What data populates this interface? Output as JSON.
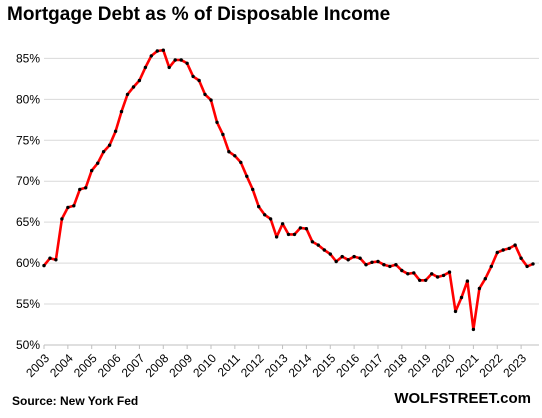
{
  "title": "Mortgage Debt as % of Disposable Income",
  "source": "Source: New York Fed",
  "brand": "WOLFSTREET.com",
  "chart_data": {
    "type": "line",
    "title": "Mortgage Debt as % of Disposable Income",
    "xlabel": "",
    "ylabel": "",
    "ylim": [
      50,
      87
    ],
    "xlim": [
      2003,
      2023.75
    ],
    "yticks": [
      50,
      55,
      60,
      65,
      70,
      75,
      80,
      85
    ],
    "ytick_labels": [
      "50%",
      "55%",
      "60%",
      "65%",
      "70%",
      "75%",
      "80%",
      "85%"
    ],
    "xticks": [
      2003,
      2004,
      2005,
      2006,
      2007,
      2008,
      2009,
      2010,
      2011,
      2012,
      2013,
      2014,
      2015,
      2016,
      2017,
      2018,
      2019,
      2020,
      2021,
      2022,
      2023
    ],
    "xtick_labels": [
      "2003",
      "2004",
      "2005",
      "2006",
      "2007",
      "2008",
      "2009",
      "2010",
      "2011",
      "2012",
      "2013",
      "2014",
      "2015",
      "2016",
      "2017",
      "2018",
      "2019",
      "2020",
      "2021",
      "2022",
      "2023"
    ],
    "grid": "horizontal",
    "line_color": "#ff0000",
    "marker_color": "#000000",
    "series": [
      {
        "x": [
          2003.0,
          2003.25,
          2003.5,
          2003.75,
          2004.0,
          2004.25,
          2004.5,
          2004.75,
          2005.0,
          2005.25,
          2005.5,
          2005.75,
          2006.0,
          2006.25,
          2006.5,
          2006.75,
          2007.0,
          2007.25,
          2007.5,
          2007.75,
          2008.0,
          2008.25,
          2008.5,
          2008.75,
          2009.0,
          2009.25,
          2009.5,
          2009.75,
          2010.0,
          2010.25,
          2010.5,
          2010.75,
          2011.0,
          2011.25,
          2011.5,
          2011.75,
          2012.0,
          2012.25,
          2012.5,
          2012.75,
          2013.0,
          2013.25,
          2013.5,
          2013.75,
          2014.0,
          2014.25,
          2014.5,
          2014.75,
          2015.0,
          2015.25,
          2015.5,
          2015.75,
          2016.0,
          2016.25,
          2016.5,
          2016.75,
          2017.0,
          2017.25,
          2017.5,
          2017.75,
          2018.0,
          2018.25,
          2018.5,
          2018.75,
          2019.0,
          2019.25,
          2019.5,
          2019.75,
          2020.0,
          2020.25,
          2020.5,
          2020.75,
          2021.0,
          2021.25,
          2021.5,
          2021.75,
          2022.0,
          2022.25,
          2022.5,
          2022.75,
          2023.0,
          2023.25,
          2023.5
        ],
        "values": [
          59.7,
          60.6,
          60.4,
          65.4,
          66.8,
          67.0,
          69.0,
          69.2,
          71.3,
          72.2,
          73.6,
          74.4,
          76.1,
          78.5,
          80.6,
          81.5,
          82.3,
          83.9,
          85.3,
          85.9,
          86.0,
          83.9,
          84.8,
          84.8,
          84.4,
          82.8,
          82.3,
          80.6,
          79.9,
          77.2,
          75.7,
          73.6,
          73.1,
          72.3,
          70.6,
          69.0,
          66.9,
          65.9,
          65.4,
          63.2,
          64.8,
          63.5,
          63.5,
          64.3,
          64.2,
          62.6,
          62.2,
          61.6,
          61.1,
          60.2,
          60.8,
          60.4,
          60.8,
          60.6,
          59.8,
          60.1,
          60.2,
          59.8,
          59.6,
          59.8,
          59.1,
          58.7,
          58.8,
          57.9,
          57.9,
          58.7,
          58.3,
          58.5,
          58.9,
          54.1,
          55.8,
          57.8,
          51.9,
          56.9,
          58.1,
          59.6,
          61.3,
          61.6,
          61.8,
          62.2,
          60.6,
          59.6,
          59.9
        ]
      }
    ]
  }
}
